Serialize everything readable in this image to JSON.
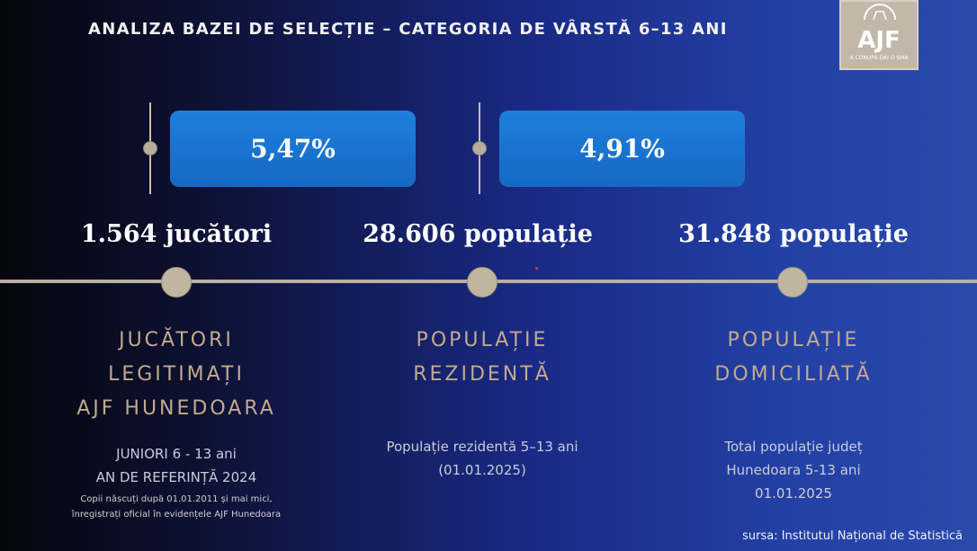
{
  "title": "ANALIZA BAZEI DE SELECȚIE – CATEGORIA DE VÂRSTĂ 6–13 ANI",
  "logo": {
    "text": "AJF",
    "slogan": "A CONUPA DĂI O SMA"
  },
  "percentages": [
    "5,47%",
    "4,91%"
  ],
  "columns": [
    {
      "value": "1.564 jucători",
      "category": [
        "JUCĂTORI",
        "LEGITIMAȚI",
        "AJF HUNEDOARA"
      ],
      "description": [
        "JUNIORI 6 - 13 ani",
        "AN DE REFERINȚĂ 2024"
      ],
      "note": [
        "Copii născuți după 01.01.2011 și mai mici,",
        "înregistrați oficial în evidențele AJF Hunedoara"
      ]
    },
    {
      "value": "28.606 populație",
      "category": [
        "POPULAȚIE",
        "REZIDENTĂ"
      ],
      "description": [
        "Populație rezidentă 5–13 ani",
        "(01.01.2025)"
      ]
    },
    {
      "value": "31.848 populație",
      "category": [
        "POPULAȚIE",
        "DOMICILIATĂ"
      ],
      "description": [
        "Total populație județ",
        "Hunedoara 5-13 ani",
        "01.01.2025"
      ]
    }
  ],
  "source": "sursa: Institutul Național de Statistică",
  "colors": {
    "accent_box": "#1a72d0",
    "category_text": "#c4a98e",
    "timeline": "#b8b0a3"
  }
}
